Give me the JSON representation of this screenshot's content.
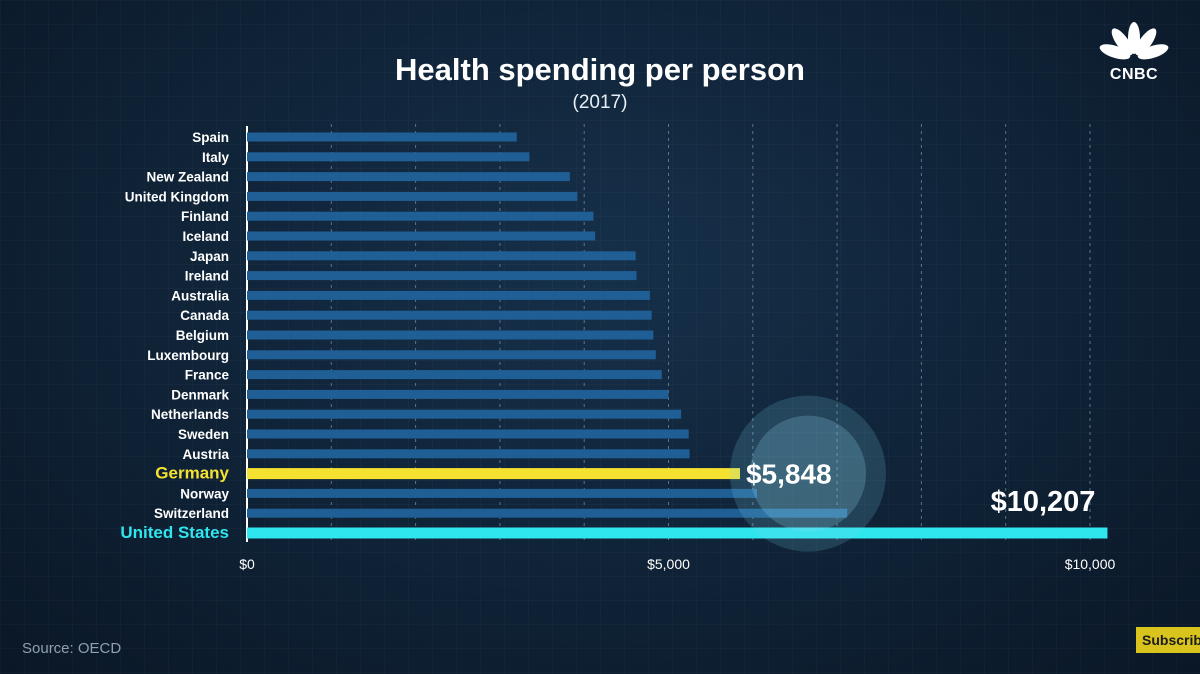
{
  "chart_data": {
    "type": "bar",
    "orientation": "horizontal",
    "title": "Health spending per person",
    "subtitle": "(2017)",
    "categories": [
      "Spain",
      "Italy",
      "New Zealand",
      "United Kingdom",
      "Finland",
      "Iceland",
      "Japan",
      "Ireland",
      "Australia",
      "Canada",
      "Belgium",
      "Luxembourg",
      "France",
      "Denmark",
      "Netherlands",
      "Sweden",
      "Austria",
      "Germany",
      "Norway",
      "Switzerland",
      "United States"
    ],
    "values": [
      3200,
      3350,
      3830,
      3920,
      4110,
      4130,
      4610,
      4620,
      4780,
      4800,
      4820,
      4850,
      4920,
      5000,
      5150,
      5240,
      5250,
      5848,
      6050,
      7120,
      10207
    ],
    "xlim": [
      0,
      10000
    ],
    "xticks": [
      0,
      5000,
      10000
    ],
    "xtick_labels": [
      "$0",
      "$5,000",
      "$10,000"
    ],
    "highlights": [
      {
        "category": "Germany",
        "label": "$5,848",
        "color": "#f5e230"
      },
      {
        "category": "United States",
        "label": "$10,207",
        "color": "#2fe6ee"
      }
    ],
    "colors": {
      "default_bar": "#1f5f96",
      "default_label": "#ffffff",
      "gridline": "#7f93a8"
    }
  },
  "source": "Source: OECD",
  "logo_text": "CNBC",
  "subscribe_label": "Subscribe"
}
